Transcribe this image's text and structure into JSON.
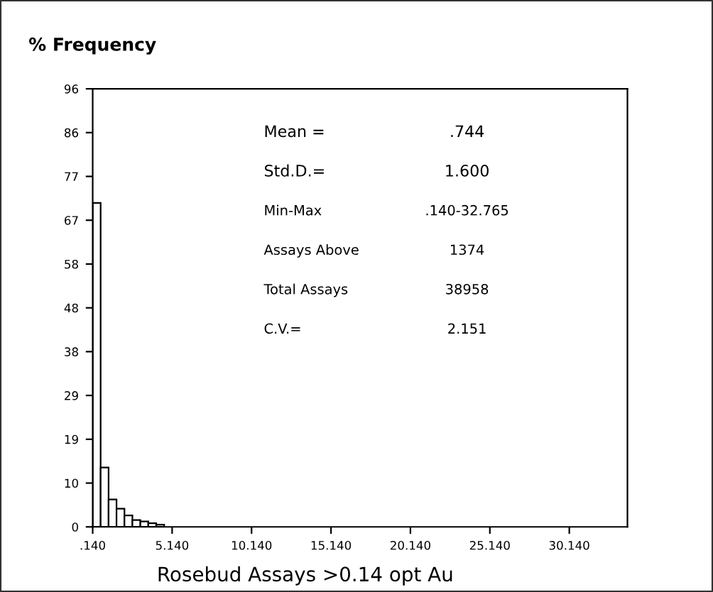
{
  "chart_data": {
    "type": "histogram",
    "title": "% Frequency",
    "xlabel": "Rosebud Assays >0.14 opt Au",
    "bins": [
      0.14,
      0.64,
      1.14,
      1.64,
      2.14,
      2.64,
      3.14,
      3.64,
      4.14,
      4.64
    ],
    "values": [
      71,
      13,
      6,
      4,
      2.5,
      1.5,
      1.2,
      0.8,
      0.5
    ],
    "color": "#ffffff",
    "xlim": [
      0.14,
      33.8
    ],
    "xticks": [
      {
        "value": 0.14,
        "label": ".140"
      },
      {
        "value": 5.14,
        "label": "5.140"
      },
      {
        "value": 10.14,
        "label": "10.140"
      },
      {
        "value": 15.14,
        "label": "15.140"
      },
      {
        "value": 20.14,
        "label": "20.140"
      },
      {
        "value": 25.14,
        "label": "25.140"
      },
      {
        "value": 30.14,
        "label": "30.140"
      }
    ],
    "ylim": [
      0,
      96
    ],
    "yticks": [
      0,
      {
        "value": 9.6,
        "label": "10"
      },
      {
        "value": 19.2,
        "label": "19"
      },
      {
        "value": 28.8,
        "label": "29"
      },
      {
        "value": 38.4,
        "label": "38"
      },
      48,
      {
        "value": 57.6,
        "label": "58"
      },
      {
        "value": 67.2,
        "label": "67"
      },
      {
        "value": 76.8,
        "label": "77"
      },
      {
        "value": 86.4,
        "label": "86"
      },
      96
    ],
    "grid": false,
    "annotations": [
      "Mean =",
      ".744",
      "Std.D.=",
      "1.600",
      "Min-Max",
      ".140-32.765",
      "Assays Above",
      "1374",
      "Total Assays",
      "38958",
      "C.V.=",
      "2.151"
    ]
  }
}
